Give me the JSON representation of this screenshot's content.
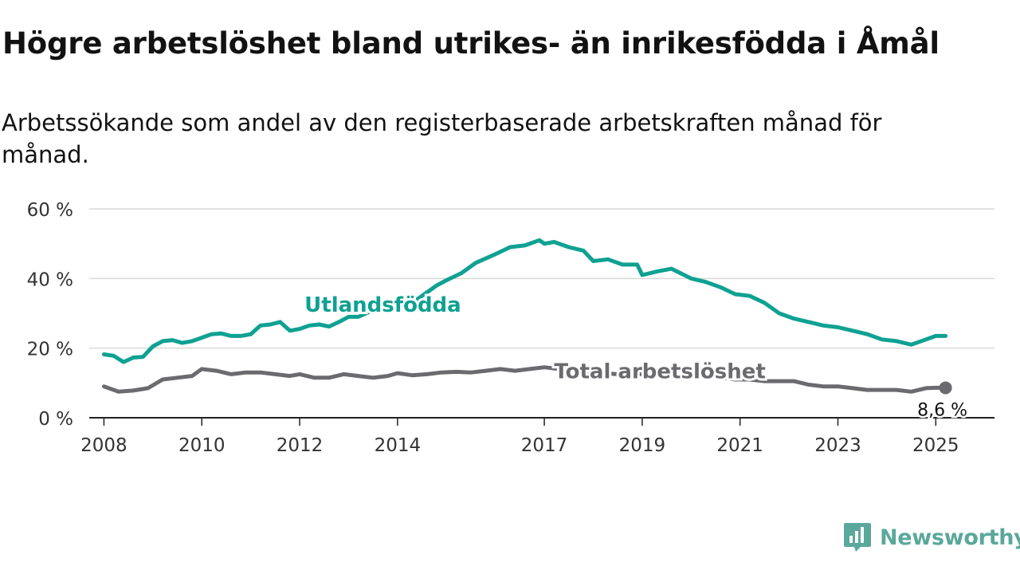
{
  "title": "Högre arbetslöshet bland utrikes- än inrikesfödda i Åmål",
  "subtitle": "Arbetssökande som andel av den registerbaserade arbetskraften månad för månad.",
  "brand": {
    "name": "Newsworthy",
    "icon": "newsworthy-logo-icon",
    "color": "#5aa89c"
  },
  "chart_data": {
    "type": "line",
    "title": "Högre arbetslöshet bland utrikes- än inrikesfödda i Åmål",
    "xlabel": "",
    "ylabel": "",
    "xlim": [
      2007.7,
      2026.2
    ],
    "ylim": [
      0,
      60
    ],
    "y_ticks": [
      0,
      20,
      40,
      60
    ],
    "y_tick_labels": [
      "0 %",
      "20 %",
      "40 %",
      "60 %"
    ],
    "x_ticks": [
      2008,
      2010,
      2012,
      2014,
      2017,
      2019,
      2021,
      2023,
      2025
    ],
    "x_tick_labels": [
      "2008",
      "2010",
      "2012",
      "2014",
      "2017",
      "2019",
      "2021",
      "2023",
      "2025"
    ],
    "grid": true,
    "legend": "direct labels on lines",
    "end_label": "8,6 %",
    "series": [
      {
        "name": "Utlandsfödda",
        "color": "#0fa192",
        "points": [
          [
            2008.0,
            18.2
          ],
          [
            2008.2,
            17.8
          ],
          [
            2008.4,
            16.0
          ],
          [
            2008.6,
            17.3
          ],
          [
            2008.8,
            17.5
          ],
          [
            2009.0,
            20.5
          ],
          [
            2009.2,
            22.0
          ],
          [
            2009.4,
            22.3
          ],
          [
            2009.6,
            21.5
          ],
          [
            2009.8,
            22.0
          ],
          [
            2010.0,
            23.0
          ],
          [
            2010.2,
            24.0
          ],
          [
            2010.4,
            24.2
          ],
          [
            2010.6,
            23.5
          ],
          [
            2010.8,
            23.5
          ],
          [
            2011.0,
            24.0
          ],
          [
            2011.2,
            26.5
          ],
          [
            2011.4,
            26.8
          ],
          [
            2011.6,
            27.5
          ],
          [
            2011.8,
            25.0
          ],
          [
            2012.0,
            25.5
          ],
          [
            2012.2,
            26.5
          ],
          [
            2012.4,
            26.8
          ],
          [
            2012.6,
            26.2
          ],
          [
            2012.8,
            27.5
          ],
          [
            2013.0,
            29.0
          ],
          [
            2013.2,
            29.0
          ],
          [
            2013.6,
            31.5
          ],
          [
            2014.0,
            33.0
          ],
          [
            2014.4,
            34.0
          ],
          [
            2014.6,
            36.0
          ],
          [
            2014.8,
            38.0
          ],
          [
            2015.0,
            39.5
          ],
          [
            2015.3,
            41.5
          ],
          [
            2015.6,
            44.5
          ],
          [
            2016.0,
            47.0
          ],
          [
            2016.3,
            49.0
          ],
          [
            2016.6,
            49.5
          ],
          [
            2016.9,
            51.0
          ],
          [
            2017.0,
            50.0
          ],
          [
            2017.2,
            50.5
          ],
          [
            2017.5,
            49.0
          ],
          [
            2017.8,
            48.0
          ],
          [
            2018.0,
            45.0
          ],
          [
            2018.3,
            45.5
          ],
          [
            2018.6,
            44.0
          ],
          [
            2018.9,
            44.0
          ],
          [
            2019.0,
            41.0
          ],
          [
            2019.3,
            42.0
          ],
          [
            2019.6,
            42.8
          ],
          [
            2020.0,
            40.0
          ],
          [
            2020.3,
            39.0
          ],
          [
            2020.6,
            37.5
          ],
          [
            2020.9,
            35.5
          ],
          [
            2021.2,
            35.0
          ],
          [
            2021.5,
            33.0
          ],
          [
            2021.8,
            30.0
          ],
          [
            2022.1,
            28.5
          ],
          [
            2022.4,
            27.5
          ],
          [
            2022.7,
            26.5
          ],
          [
            2023.0,
            26.0
          ],
          [
            2023.3,
            25.0
          ],
          [
            2023.6,
            24.0
          ],
          [
            2023.9,
            22.5
          ],
          [
            2024.2,
            22.0
          ],
          [
            2024.5,
            21.0
          ],
          [
            2024.8,
            22.5
          ],
          [
            2025.0,
            23.5
          ],
          [
            2025.2,
            23.5
          ]
        ]
      },
      {
        "name": "Total arbetslöshet",
        "color": "#6b6a6e",
        "points": [
          [
            2008.0,
            9.0
          ],
          [
            2008.3,
            7.5
          ],
          [
            2008.6,
            7.8
          ],
          [
            2008.9,
            8.5
          ],
          [
            2009.2,
            11.0
          ],
          [
            2009.5,
            11.5
          ],
          [
            2009.8,
            12.0
          ],
          [
            2010.0,
            14.0
          ],
          [
            2010.3,
            13.5
          ],
          [
            2010.6,
            12.5
          ],
          [
            2010.9,
            13.0
          ],
          [
            2011.2,
            13.0
          ],
          [
            2011.5,
            12.5
          ],
          [
            2011.8,
            12.0
          ],
          [
            2012.0,
            12.5
          ],
          [
            2012.3,
            11.5
          ],
          [
            2012.6,
            11.5
          ],
          [
            2012.9,
            12.5
          ],
          [
            2013.2,
            12.0
          ],
          [
            2013.5,
            11.5
          ],
          [
            2013.8,
            12.0
          ],
          [
            2014.0,
            12.8
          ],
          [
            2014.3,
            12.2
          ],
          [
            2014.6,
            12.5
          ],
          [
            2014.9,
            13.0
          ],
          [
            2015.2,
            13.2
          ],
          [
            2015.5,
            13.0
          ],
          [
            2015.8,
            13.5
          ],
          [
            2016.1,
            14.0
          ],
          [
            2016.4,
            13.5
          ],
          [
            2016.7,
            14.0
          ],
          [
            2017.0,
            14.5
          ],
          [
            2017.3,
            14.0
          ],
          [
            2017.6,
            13.5
          ],
          [
            2017.9,
            13.5
          ],
          [
            2018.2,
            12.8
          ],
          [
            2018.5,
            12.5
          ],
          [
            2018.8,
            12.5
          ],
          [
            2019.1,
            12.5
          ],
          [
            2019.4,
            12.0
          ],
          [
            2019.7,
            12.0
          ],
          [
            2020.0,
            11.8
          ],
          [
            2020.3,
            12.0
          ],
          [
            2020.6,
            11.5
          ],
          [
            2020.9,
            11.0
          ],
          [
            2021.2,
            11.0
          ],
          [
            2021.5,
            10.5
          ],
          [
            2021.8,
            10.5
          ],
          [
            2022.1,
            10.5
          ],
          [
            2022.4,
            9.5
          ],
          [
            2022.7,
            9.0
          ],
          [
            2023.0,
            9.0
          ],
          [
            2023.3,
            8.5
          ],
          [
            2023.6,
            8.0
          ],
          [
            2023.9,
            8.0
          ],
          [
            2024.2,
            8.0
          ],
          [
            2024.5,
            7.5
          ],
          [
            2024.8,
            8.5
          ],
          [
            2025.0,
            8.6
          ],
          [
            2025.2,
            8.6
          ]
        ]
      }
    ]
  }
}
